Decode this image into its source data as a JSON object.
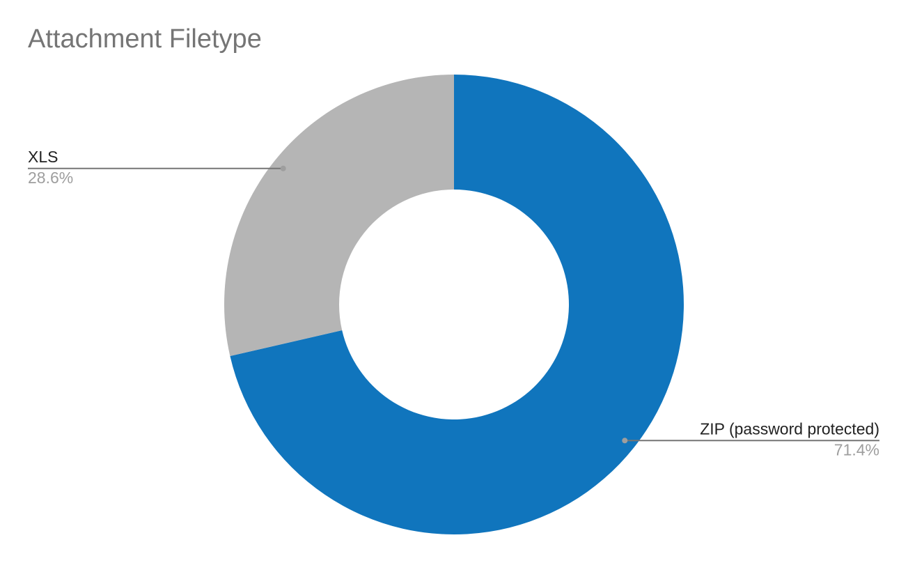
{
  "chart_data": {
    "type": "donut",
    "title": "Attachment Filetype",
    "categories": [
      "ZIP (password protected)",
      "XLS"
    ],
    "values": [
      71.4,
      28.6
    ],
    "value_labels": [
      "71.4%",
      "28.6%"
    ],
    "colors": [
      "#1075bd",
      "#b5b5b5"
    ]
  }
}
